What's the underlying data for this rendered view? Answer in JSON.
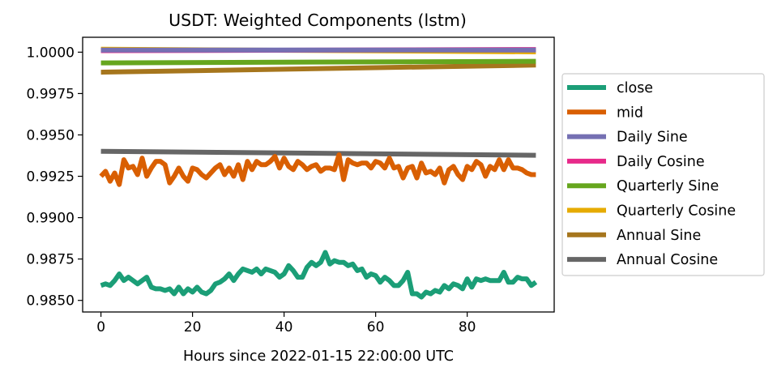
{
  "chart_data": {
    "type": "line",
    "title": "USDT: Weighted Components (lstm)",
    "xlabel": "Hours since 2022-01-15 22:00:00 UTC",
    "ylabel": "",
    "xlim": [
      -4,
      99
    ],
    "ylim": [
      0.9843,
      1.0009
    ],
    "xticks": [
      0,
      20,
      40,
      60,
      80
    ],
    "xtick_labels": [
      "0",
      "20",
      "40",
      "60",
      "80"
    ],
    "yticks": [
      0.985,
      0.9875,
      0.99,
      0.9925,
      0.995,
      0.9975,
      1.0
    ],
    "ytick_labels": [
      "0.9850",
      "0.9875",
      "0.9900",
      "0.9925",
      "0.9950",
      "0.9975",
      "1.0000"
    ],
    "grid": false,
    "legend_position": "center-right outside",
    "series": [
      {
        "name": "close",
        "color": "#1b9e77",
        "x": [
          0,
          1,
          2,
          3,
          4,
          5,
          6,
          7,
          8,
          9,
          10,
          11,
          12,
          13,
          14,
          15,
          16,
          17,
          18,
          19,
          20,
          21,
          22,
          23,
          24,
          25,
          26,
          27,
          28,
          29,
          30,
          31,
          32,
          33,
          34,
          35,
          36,
          37,
          38,
          39,
          40,
          41,
          42,
          43,
          44,
          45,
          46,
          47,
          48,
          49,
          50,
          51,
          52,
          53,
          54,
          55,
          56,
          57,
          58,
          59,
          60,
          61,
          62,
          63,
          64,
          65,
          66,
          67,
          68,
          69,
          70,
          71,
          72,
          73,
          74,
          75,
          76,
          77,
          78,
          79,
          80,
          81,
          82,
          83,
          84,
          85,
          86,
          87,
          88,
          89,
          90,
          91,
          92,
          93,
          94,
          95
        ],
        "values": [
          0.9859,
          0.986,
          0.9859,
          0.9862,
          0.9866,
          0.9862,
          0.9864,
          0.9862,
          0.986,
          0.9862,
          0.9864,
          0.9858,
          0.9857,
          0.9857,
          0.9856,
          0.9857,
          0.9854,
          0.9858,
          0.9854,
          0.9857,
          0.9855,
          0.9858,
          0.9855,
          0.9854,
          0.9856,
          0.986,
          0.9861,
          0.9863,
          0.9866,
          0.9862,
          0.9866,
          0.9869,
          0.9868,
          0.9867,
          0.9869,
          0.9866,
          0.9869,
          0.9868,
          0.9867,
          0.9864,
          0.9866,
          0.9871,
          0.9868,
          0.9864,
          0.9864,
          0.987,
          0.9873,
          0.9871,
          0.9873,
          0.9879,
          0.9872,
          0.9874,
          0.9873,
          0.9873,
          0.9871,
          0.9872,
          0.9868,
          0.9869,
          0.9864,
          0.9866,
          0.9865,
          0.9861,
          0.9864,
          0.9862,
          0.9859,
          0.9859,
          0.9862,
          0.9867,
          0.9854,
          0.9854,
          0.9852,
          0.9855,
          0.9854,
          0.9856,
          0.9855,
          0.9859,
          0.9857,
          0.986,
          0.9859,
          0.9857,
          0.9863,
          0.9858,
          0.9863,
          0.9862,
          0.9863,
          0.9862,
          0.9862,
          0.9862,
          0.9867,
          0.9861,
          0.9861,
          0.9864,
          0.9863,
          0.9863,
          0.9859,
          0.9861
        ]
      },
      {
        "name": "mid",
        "color": "#d95f02",
        "x": [
          0,
          1,
          2,
          3,
          4,
          5,
          6,
          7,
          8,
          9,
          10,
          11,
          12,
          13,
          14,
          15,
          16,
          17,
          18,
          19,
          20,
          21,
          22,
          23,
          24,
          25,
          26,
          27,
          28,
          29,
          30,
          31,
          32,
          33,
          34,
          35,
          36,
          37,
          38,
          39,
          40,
          41,
          42,
          43,
          44,
          45,
          46,
          47,
          48,
          49,
          50,
          51,
          52,
          53,
          54,
          55,
          56,
          57,
          58,
          59,
          60,
          61,
          62,
          63,
          64,
          65,
          66,
          67,
          68,
          69,
          70,
          71,
          72,
          73,
          74,
          75,
          76,
          77,
          78,
          79,
          80,
          81,
          82,
          83,
          84,
          85,
          86,
          87,
          88,
          89,
          90,
          91,
          92,
          93,
          94,
          95
        ],
        "values": [
          0.9925,
          0.9928,
          0.9922,
          0.9927,
          0.992,
          0.9935,
          0.993,
          0.9931,
          0.9926,
          0.9936,
          0.9925,
          0.993,
          0.9934,
          0.9934,
          0.9932,
          0.9921,
          0.9925,
          0.993,
          0.9925,
          0.9922,
          0.993,
          0.9929,
          0.9926,
          0.9924,
          0.9927,
          0.993,
          0.9932,
          0.9926,
          0.993,
          0.9925,
          0.9932,
          0.9923,
          0.9934,
          0.9929,
          0.9934,
          0.9932,
          0.9932,
          0.9934,
          0.9937,
          0.993,
          0.9936,
          0.9931,
          0.9929,
          0.9934,
          0.9932,
          0.9929,
          0.9931,
          0.9932,
          0.9928,
          0.993,
          0.993,
          0.9929,
          0.9938,
          0.9923,
          0.9935,
          0.9933,
          0.9932,
          0.9933,
          0.9933,
          0.993,
          0.9934,
          0.9933,
          0.993,
          0.9936,
          0.993,
          0.9931,
          0.9924,
          0.993,
          0.9931,
          0.9924,
          0.9933,
          0.9927,
          0.9928,
          0.9926,
          0.993,
          0.9921,
          0.9929,
          0.9931,
          0.9926,
          0.9923,
          0.9931,
          0.9929,
          0.9934,
          0.9932,
          0.9925,
          0.9931,
          0.9929,
          0.9935,
          0.9929,
          0.9935,
          0.993,
          0.993,
          0.9929,
          0.9927,
          0.9926,
          0.9926
        ]
      },
      {
        "name": "Daily Sine",
        "color": "#7570b3",
        "x": [
          0,
          95
        ],
        "values": [
          1.00013,
          1.00013
        ]
      },
      {
        "name": "Daily Cosine",
        "color": "#e7298a",
        "x": [
          0,
          95
        ],
        "values": [
          1.00009,
          1.00016
        ]
      },
      {
        "name": "Quarterly Sine",
        "color": "#66a61e",
        "x": [
          0,
          95
        ],
        "values": [
          0.99935,
          0.99945
        ]
      },
      {
        "name": "Quarterly Cosine",
        "color": "#e6ab02",
        "x": [
          0,
          95
        ],
        "values": [
          1.00018,
          1.00002
        ]
      },
      {
        "name": "Annual Sine",
        "color": "#a6761d",
        "x": [
          0,
          95
        ],
        "values": [
          0.99879,
          0.99922
        ]
      },
      {
        "name": "Annual Cosine",
        "color": "#666666",
        "x": [
          0,
          95
        ],
        "values": [
          0.99401,
          0.99377
        ]
      }
    ]
  }
}
